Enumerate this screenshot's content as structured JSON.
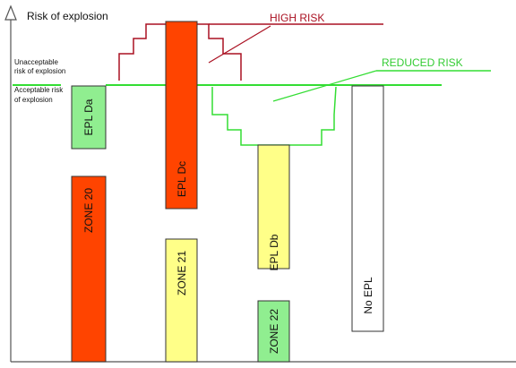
{
  "axis": {
    "y_label": "Risk of explosion"
  },
  "thresholds": {
    "unacceptable_line1": "Unacceptable",
    "unacceptable_line2": "risk of explosion",
    "acceptable_line1": "Acceptable risk",
    "acceptable_line2": "of explosion"
  },
  "annotations": {
    "high_risk": "HIGH RISK",
    "reduced_risk": "REDUCED RISK"
  },
  "blocks": {
    "epl_da": "EPL Da",
    "zone_20": "ZONE 20",
    "epl_dc": "EPL Dc",
    "zone_21": "ZONE 21",
    "epl_db": "EPL Db",
    "zone_22": "ZONE 22",
    "no_epl": "No EPL"
  },
  "colors": {
    "red_block": "#ff4400",
    "green_block": "#90ee90",
    "yellow_block": "#ffff88",
    "white_block": "#ffffff",
    "green_line": "#33dd33",
    "high_risk_line": "#aa1122",
    "axis": "#555555"
  }
}
